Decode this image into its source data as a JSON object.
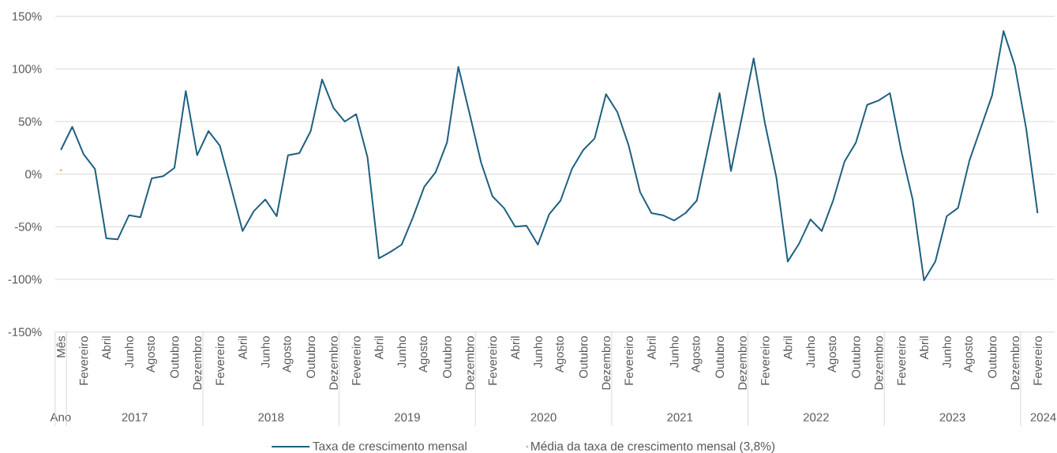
{
  "chart_data": {
    "type": "line",
    "categories": [
      "Mês",
      null,
      "Fevereiro",
      null,
      "Abril",
      null,
      "Junho",
      null,
      "Agosto",
      null,
      "Outubro",
      null,
      "Dezembro",
      null,
      "Fevereiro",
      null,
      "Abril",
      null,
      "Junho",
      null,
      "Agosto",
      null,
      "Outubro",
      null,
      "Dezembro",
      null,
      "Fevereiro",
      null,
      "Abril",
      null,
      "Junho",
      null,
      "Agosto",
      null,
      "Outubro",
      null,
      "Dezembro",
      null,
      "Fevereiro",
      null,
      "Abril",
      null,
      "Junho",
      null,
      "Agosto",
      null,
      "Outubro",
      null,
      "Dezembro",
      null,
      "Fevereiro",
      null,
      "Abril",
      null,
      "Junho",
      null,
      "Agosto",
      null,
      "Outubro",
      null,
      "Dezembro",
      null,
      "Fevereiro",
      null,
      "Abril",
      null,
      "Junho",
      null,
      "Agosto",
      null,
      "Outubro",
      null,
      "Dezembro",
      null,
      "Fevereiro",
      null,
      "Abril",
      null,
      "Junho",
      null,
      "Agosto",
      null,
      "Outubro",
      null,
      "Dezembro",
      null,
      "Fevereiro",
      null
    ],
    "series": [
      {
        "name": "Taxa de crescimento mensal",
        "color": "#1f6080",
        "values": [
          23,
          45,
          19,
          5,
          -61,
          -62,
          -39,
          -41,
          -4,
          -2,
          6,
          79,
          18,
          41,
          27,
          -13,
          -54,
          -35,
          -24,
          -40,
          18,
          20,
          41,
          90,
          63,
          50,
          57,
          16,
          -80,
          -74,
          -67,
          -41,
          -12,
          2,
          30,
          102,
          57,
          11,
          -21,
          -32,
          -50,
          -49,
          -67,
          -38,
          -25,
          5,
          23,
          34,
          76,
          59,
          27,
          -17,
          -37,
          -39,
          -44,
          -37,
          -25,
          26,
          77,
          3,
          56,
          110,
          48,
          -3,
          -83,
          -66,
          -43,
          -54,
          -25,
          12,
          30,
          66,
          70,
          77,
          22,
          -24,
          -101,
          -83,
          -40,
          -32,
          13,
          44,
          75,
          136,
          103,
          43,
          -37,
          null
        ]
      },
      {
        "name": "Média da taxa de crescimento mensal (3,8%)",
        "type": "scatter",
        "color": "#f4b183",
        "values": [
          3.8,
          null,
          null,
          null,
          null,
          null,
          null,
          null,
          null,
          null,
          null,
          null,
          null,
          null,
          null,
          null,
          null,
          null,
          null,
          null,
          null,
          null,
          null,
          null,
          null,
          null,
          null,
          null,
          null,
          null,
          null,
          null,
          null,
          null,
          null,
          null,
          null,
          null,
          null,
          null,
          null,
          null,
          null,
          null,
          null,
          null,
          null,
          null,
          null,
          null,
          null,
          null,
          null,
          null,
          null,
          null,
          null,
          null,
          null,
          null,
          null,
          null,
          null,
          null,
          null,
          null,
          null,
          null,
          null,
          null,
          null,
          null,
          null,
          null,
          null,
          null,
          null,
          null,
          null,
          null,
          null,
          null,
          null,
          null,
          null,
          null,
          null,
          null
        ]
      }
    ],
    "ylim": [
      -150,
      150
    ],
    "yticks": [
      {
        "value": -150,
        "label": "-150%"
      },
      {
        "value": -100,
        "label": "-100%"
      },
      {
        "value": -50,
        "label": "-50%"
      },
      {
        "value": 0,
        "label": "0%"
      },
      {
        "value": 50,
        "label": "50%"
      },
      {
        "value": 100,
        "label": "100%"
      },
      {
        "value": 150,
        "label": "150%"
      }
    ],
    "x2lim": [
      "2016-12-01",
      "2024-04-01"
    ],
    "x2ticks": [
      {
        "value": "2016-12-01",
        "label": null
      },
      {
        "value": "2016-12-16",
        "label": "Ano"
      },
      {
        "value": "2017-01-01",
        "label": null
      },
      {
        "value": "2017-07-01",
        "label": "2017"
      },
      {
        "value": "2018-01-01",
        "label": null
      },
      {
        "value": "2018-07-01",
        "label": "2018"
      },
      {
        "value": "2019-01-01",
        "label": null
      },
      {
        "value": "2019-07-01",
        "label": "2019"
      },
      {
        "value": "2020-01-01",
        "label": null
      },
      {
        "value": "2020-07-01",
        "label": "2020"
      },
      {
        "value": "2021-01-01",
        "label": null
      },
      {
        "value": "2021-07-01",
        "label": "2021"
      },
      {
        "value": "2022-01-01",
        "label": null
      },
      {
        "value": "2022-07-01",
        "label": "2022"
      },
      {
        "value": "2023-01-01",
        "label": null
      },
      {
        "value": "2023-07-01",
        "label": "2023"
      },
      {
        "value": "2024-01-01",
        "label": null
      },
      {
        "value": "2024-03-01",
        "label": "2024"
      }
    ],
    "grid": "y",
    "legend": "bottom"
  }
}
